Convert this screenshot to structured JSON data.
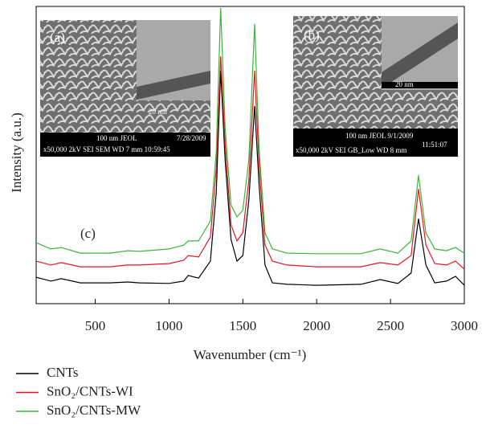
{
  "chart_data": {
    "type": "line",
    "x_label": "Wavenumber (cm⁻¹)",
    "y_label": "Intensity (a.u.)",
    "x": [
      100,
      200,
      270,
      400,
      600,
      720,
      800,
      1000,
      1100,
      1130,
      1200,
      1280,
      1320,
      1350,
      1380,
      1420,
      1460,
      1500,
      1540,
      1580,
      1610,
      1650,
      1700,
      1800,
      2000,
      2300,
      2430,
      2550,
      2640,
      2690,
      2740,
      2800,
      2880,
      2940,
      3000
    ],
    "series": [
      {
        "name": "CNTs",
        "color": "#000000",
        "values": [
          8.9,
          7.6,
          8.4,
          7.0,
          7.0,
          7.3,
          7.0,
          6.8,
          7.6,
          9.5,
          8.6,
          14.3,
          37.3,
          78.4,
          48.1,
          21.6,
          14.3,
          16.2,
          34.6,
          66.5,
          40.0,
          13.0,
          7.0,
          6.5,
          6.2,
          6.5,
          8.1,
          6.8,
          10.3,
          28.6,
          13.0,
          7.0,
          7.6,
          9.2,
          6.2
        ]
      },
      {
        "name": "SnO₂/CNTs-WI",
        "color": "#e8141c",
        "values": [
          14.3,
          13.0,
          13.8,
          12.4,
          12.4,
          13.0,
          13.0,
          13.5,
          14.6,
          16.2,
          15.7,
          22.4,
          45.4,
          83.2,
          53.5,
          26.5,
          21.1,
          23.8,
          41.4,
          78.4,
          46.8,
          19.7,
          14.3,
          13.0,
          12.4,
          12.4,
          13.8,
          13.0,
          16.2,
          38.6,
          19.7,
          13.5,
          13.0,
          14.3,
          11.6
        ]
      },
      {
        "name": "SnO₂/CNTs-MW",
        "color": "#3cb43c",
        "values": [
          20.5,
          18.4,
          18.9,
          17.0,
          17.0,
          17.8,
          17.6,
          18.4,
          19.7,
          21.1,
          21.1,
          27.8,
          50.8,
          99.5,
          58.9,
          33.2,
          29.2,
          31.4,
          48.1,
          94.1,
          52.2,
          23.8,
          18.4,
          17.0,
          16.8,
          16.8,
          18.4,
          17.0,
          21.1,
          43.2,
          23.8,
          18.4,
          17.8,
          18.9,
          17.0
        ]
      }
    ],
    "xlim": [
      100,
      3000
    ],
    "xticks": [
      500,
      1000,
      1500,
      2000,
      2500,
      3000
    ],
    "ylim": [
      0,
      100
    ],
    "annotation": "(c)",
    "insets": [
      {
        "label": "(a)",
        "scale_tem": "20 nm",
        "scale_sem": "100 nm JEOL",
        "date": "7/28/2009",
        "footer": "x50,000  2kV    SEI    SEM   WD 7 mm    10:59:45"
      },
      {
        "label": "(b)",
        "scale_tem": "20 nm",
        "scale_sem": "100 nm JEOL  9/1/2009",
        "date": "11:51:07",
        "footer": "x50,000 2kV SEI GB_Low WD 8 mm"
      }
    ]
  }
}
